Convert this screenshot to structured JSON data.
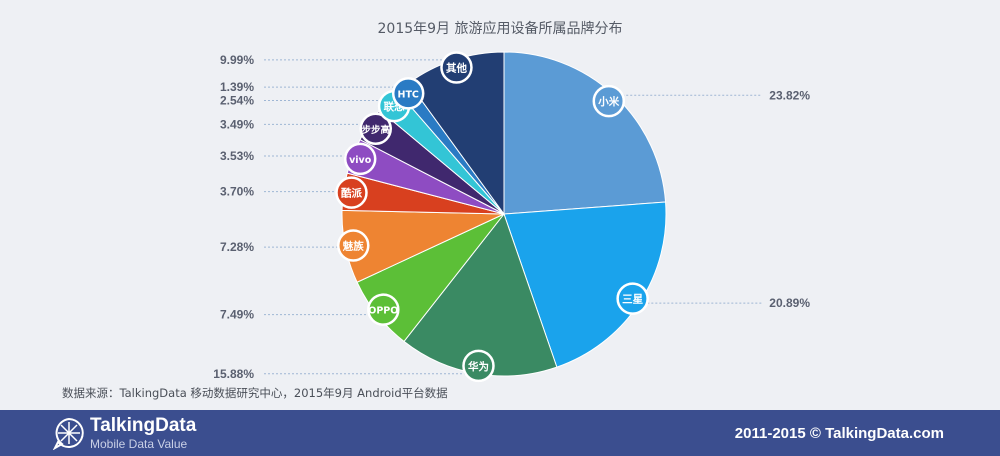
{
  "header": {
    "title": "2015年9月 旅游应用设备所属品牌分布"
  },
  "chart_data": {
    "type": "pie",
    "title": "2015年9月 旅游应用设备所属品牌分布",
    "slices": [
      {
        "label": "小米",
        "value": 23.82,
        "value_label": "23.82%",
        "color": "#5b9bd5"
      },
      {
        "label": "三星",
        "value": 20.89,
        "value_label": "20.89%",
        "color": "#1aa3ec"
      },
      {
        "label": "华为",
        "value": 15.88,
        "value_label": "15.88%",
        "color": "#3a8a63"
      },
      {
        "label": "OPPO",
        "value": 7.49,
        "value_label": "7.49%",
        "color": "#5cbf37"
      },
      {
        "label": "魅族",
        "value": 7.28,
        "value_label": "7.28%",
        "color": "#ee8432"
      },
      {
        "label": "酷派",
        "value": 3.7,
        "value_label": "3.70%",
        "color": "#d8401f"
      },
      {
        "label": "vivo",
        "value": 3.53,
        "value_label": "3.53%",
        "color": "#8e4cc2"
      },
      {
        "label": "步步高",
        "value": 3.49,
        "value_label": "3.49%",
        "color": "#40286e"
      },
      {
        "label": "联想",
        "value": 2.54,
        "value_label": "2.54%",
        "color": "#33c5d6"
      },
      {
        "label": "HTC",
        "value": 1.39,
        "value_label": "1.39%",
        "color": "#2a7bc4"
      },
      {
        "label": "其他",
        "value": 9.99,
        "value_label": "9.99%",
        "color": "#223e73"
      }
    ]
  },
  "source_note": "数据来源：TalkingData 移动数据研究中心，2015年9月 Android平台数据",
  "footer": {
    "brand_name": "TalkingData",
    "tagline": "Mobile Data Value",
    "copyright": "2011-2015 © TalkingData.com"
  }
}
